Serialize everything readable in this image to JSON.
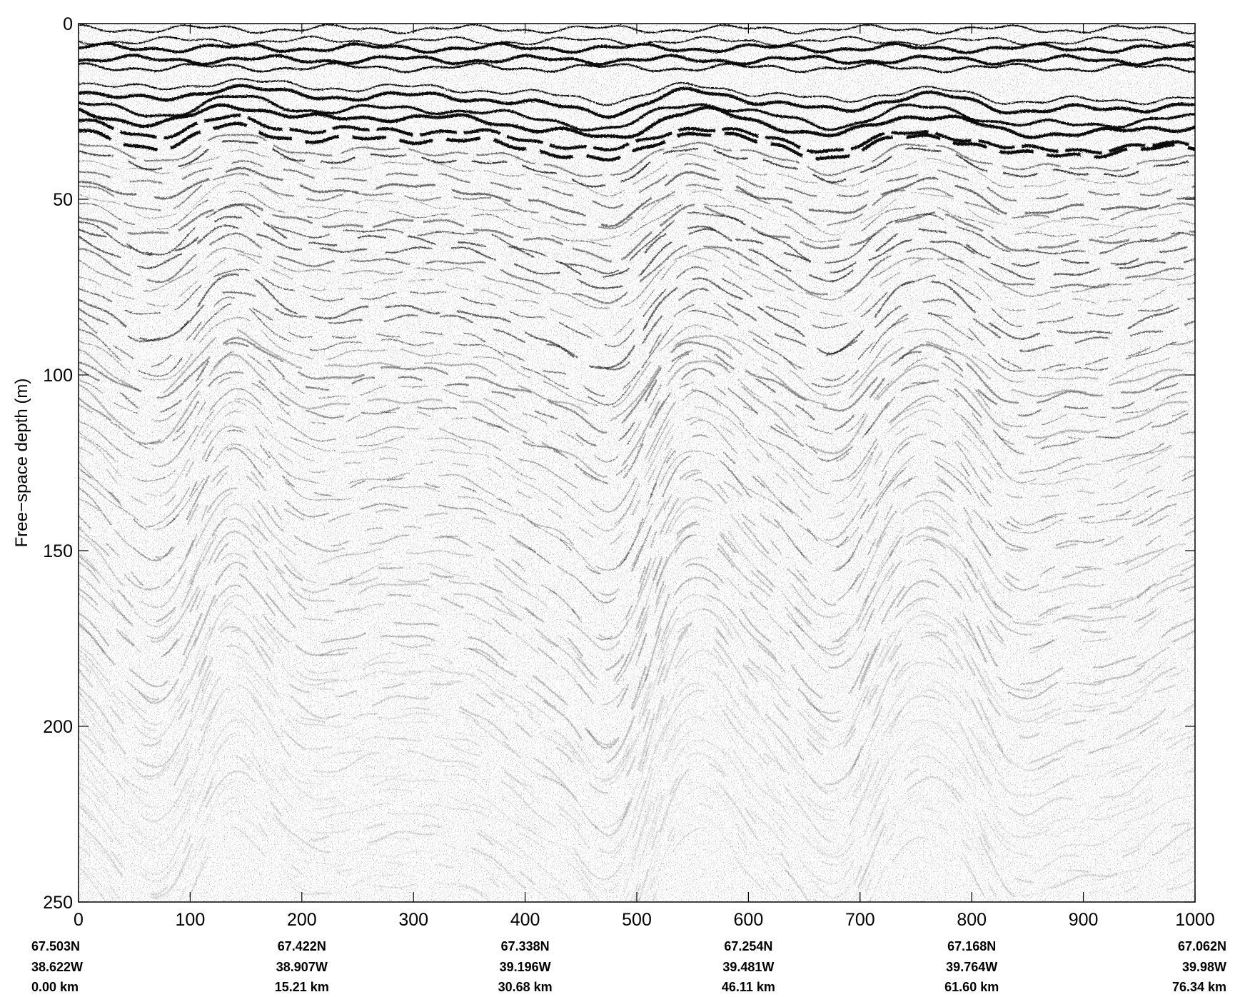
{
  "chart_data": {
    "type": "heatmap",
    "title": "",
    "xlabel": "",
    "ylabel": "Free−space depth (m)",
    "xlim": [
      0,
      1000
    ],
    "ylim": [
      250,
      0
    ],
    "x_ticks": [
      "0",
      "100",
      "200",
      "300",
      "400",
      "500",
      "600",
      "700",
      "800",
      "900",
      "1000"
    ],
    "y_ticks": [
      "0",
      "50",
      "100",
      "150",
      "200",
      "250"
    ],
    "grid": false,
    "colormap": "grayscale",
    "colors": {
      "background": "#ffffff",
      "trace": "#000000"
    },
    "position_labels": [
      {
        "x": 0,
        "lat": "67.503N",
        "lon": "38.622W",
        "dist": "0.00 km"
      },
      {
        "x": 200,
        "lat": "67.422N",
        "lon": "38.907W",
        "dist": "15.21 km"
      },
      {
        "x": 400,
        "lat": "67.338N",
        "lon": "39.196W",
        "dist": "30.68 km"
      },
      {
        "x": 600,
        "lat": "67.254N",
        "lon": "39.481W",
        "dist": "46.11 km"
      },
      {
        "x": 800,
        "lat": "67.168N",
        "lon": "39.764W",
        "dist": "61.60 km"
      },
      {
        "x": 1000,
        "lat": "67.062N",
        "lon": "39.98W",
        "dist": "76.34 km"
      }
    ]
  }
}
